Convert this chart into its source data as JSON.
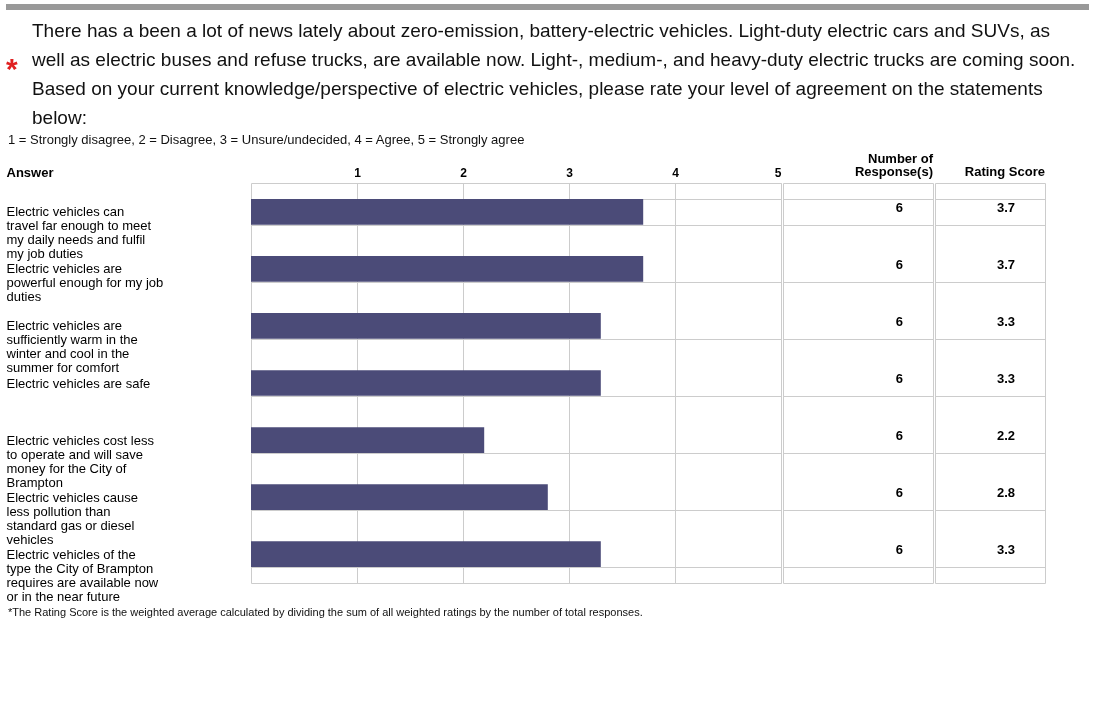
{
  "chart_data": {
    "type": "bar",
    "orientation": "horizontal",
    "title": "There has a been a lot of news lately about zero-emission, battery-electric vehicles. Light-duty electric cars and SUVs, as well as electric buses and refuse trucks, are available now. Light-, medium-, and heavy-duty electric trucks are coming soon. Based on your current knowledge/perspective of electric vehicles, please rate your level of agreement on the statements below:",
    "subtitle": "1 = Strongly disagree, 2 = Disagree, 3 = Unsure/undecided, 4 = Agree, 5 = Strongly agree",
    "ylabel": "Answer",
    "categories": [
      "Electric vehicles can travel far enough to meet my daily needs and fulfil my job duties",
      "Electric vehicles are powerful enough for my job duties",
      "Electric vehicles are sufficiently warm in the winter and cool in the summer for comfort",
      "Electric vehicles are safe",
      "Electric vehicles cost less to operate and will save money for the City of Brampton",
      "Electric vehicles cause less pollution than standard gas or diesel vehicles",
      "Electric vehicles of the type the City of Brampton requires are available now or in the near future"
    ],
    "values": [
      3.7,
      3.7,
      3.3,
      3.3,
      2.2,
      2.8,
      3.3
    ],
    "color": "#4b4b78",
    "xlim": [
      0,
      5
    ],
    "xticks": [
      1,
      2,
      3,
      4,
      5
    ],
    "grid": true,
    "data_labels": true,
    "annotations": [
      "*",
      "Number of Response(s)",
      "Rating Score",
      "6",
      "6",
      "6",
      "6",
      "6",
      "6",
      "6",
      "*The Rating Score is the weighted average calculated by dividing the sum of all weighted ratings by the number of total responses."
    ]
  }
}
